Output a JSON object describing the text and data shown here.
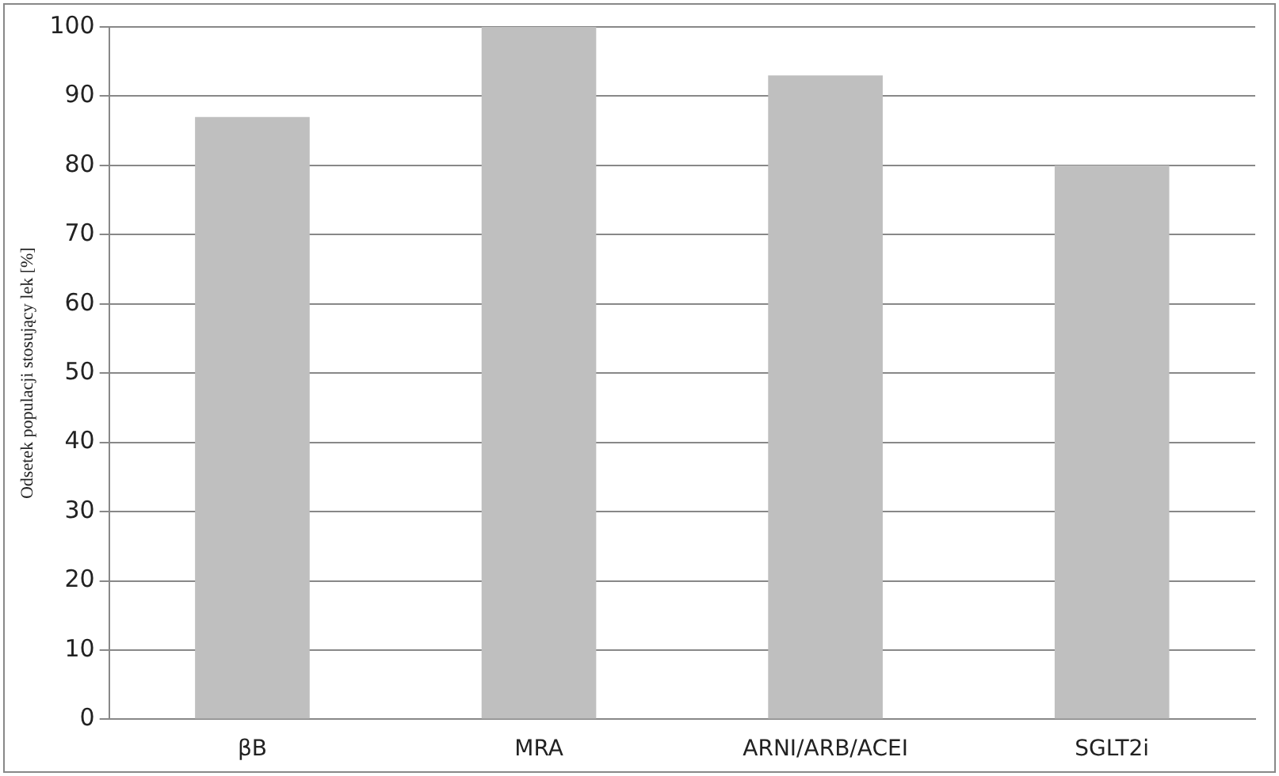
{
  "chart_data": {
    "type": "bar",
    "ylabel": "Odsetek populacji stosujący lek [%]",
    "categories": [
      "βB",
      "MRA",
      "ARNI/ARB/ACEI",
      "SGLT2i"
    ],
    "values": [
      87,
      100,
      93,
      80
    ],
    "color": "#bfbfbf",
    "ylim": [
      0,
      100
    ],
    "yticks": [
      0,
      10,
      20,
      30,
      40,
      50,
      60,
      70,
      80,
      90,
      100
    ],
    "grid": "y",
    "legend": false
  }
}
